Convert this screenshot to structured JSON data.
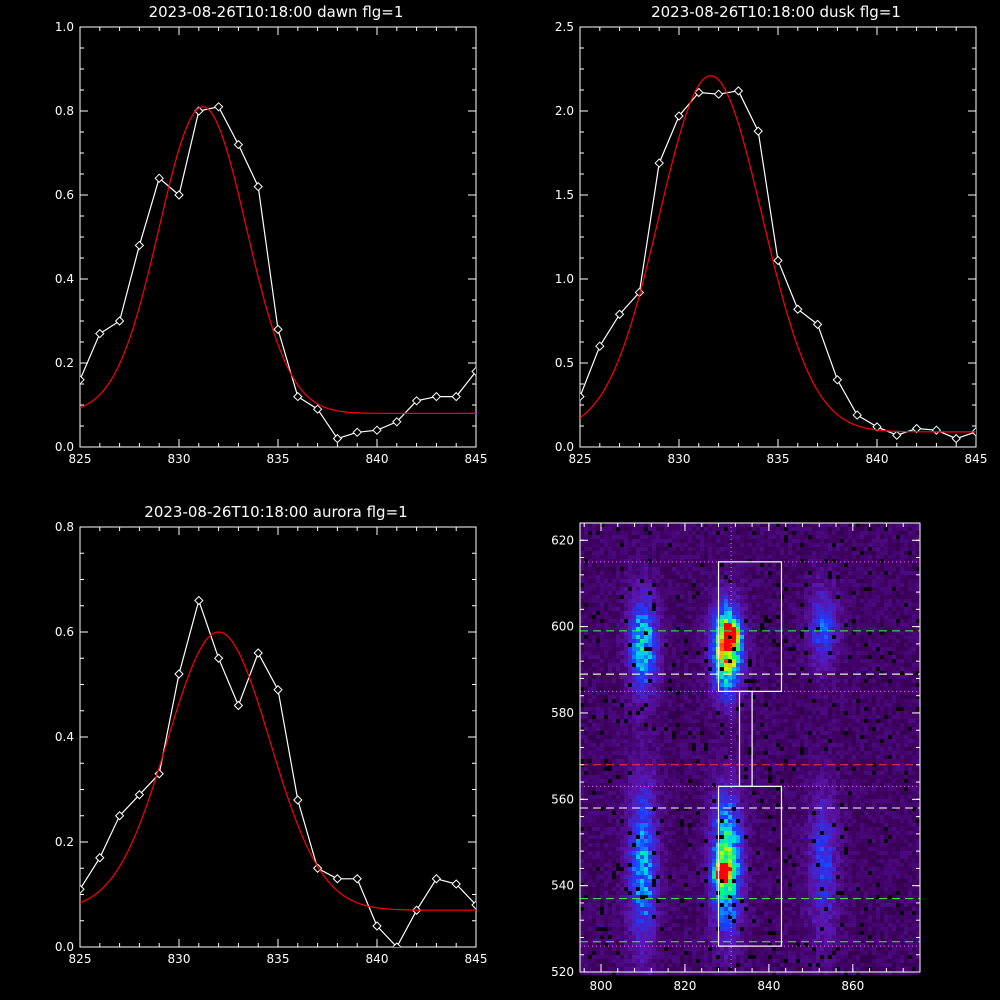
{
  "chart_data": [
    {
      "type": "line",
      "title": "2023-08-26T10:18:00 dawn flg=1",
      "xlim": [
        825,
        845
      ],
      "ylim": [
        0.0,
        1.0
      ],
      "xticks": [
        "825",
        "830",
        "835",
        "840",
        "845"
      ],
      "yticks": [
        "0.0",
        "0.2",
        "0.4",
        "0.6",
        "0.8",
        "1.0"
      ],
      "grid": false,
      "series": [
        {
          "color": "#ffffff",
          "marker": "diamond",
          "x": [
            825,
            826,
            827,
            828,
            829,
            830,
            831,
            832,
            833,
            834,
            835,
            836,
            837,
            838,
            839,
            840,
            841,
            842,
            843,
            844,
            845
          ],
          "y": [
            0.16,
            0.27,
            0.3,
            0.48,
            0.64,
            0.6,
            0.8,
            0.81,
            0.72,
            0.62,
            0.28,
            0.12,
            0.09,
            0.02,
            0.035,
            0.04,
            0.06,
            0.11,
            0.12,
            0.12,
            0.18
          ]
        },
        {
          "color": "#ff0000",
          "fit": "gaussian",
          "amplitude": 0.73,
          "center": 831.2,
          "sigma": 2.2,
          "baseline": 0.08
        }
      ]
    },
    {
      "type": "line",
      "title": "2023-08-26T10:18:00 dusk flg=1",
      "xlim": [
        825,
        845
      ],
      "ylim": [
        0.0,
        2.5
      ],
      "xticks": [
        "825",
        "830",
        "835",
        "840",
        "845"
      ],
      "yticks": [
        "0.0",
        "0.5",
        "1.0",
        "1.5",
        "2.0",
        "2.5"
      ],
      "grid": false,
      "series": [
        {
          "color": "#ffffff",
          "marker": "diamond",
          "x": [
            825,
            826,
            827,
            828,
            829,
            830,
            831,
            832,
            833,
            834,
            835,
            836,
            837,
            838,
            839,
            840,
            841,
            842,
            843,
            844,
            845
          ],
          "y": [
            0.3,
            0.6,
            0.79,
            0.92,
            1.69,
            1.97,
            2.11,
            2.1,
            2.12,
            1.88,
            1.11,
            0.82,
            0.73,
            0.4,
            0.19,
            0.12,
            0.07,
            0.11,
            0.1,
            0.05,
            0.09
          ]
        },
        {
          "color": "#ff0000",
          "fit": "gaussian",
          "amplitude": 2.12,
          "center": 831.6,
          "sigma": 2.6,
          "baseline": 0.09
        }
      ]
    },
    {
      "type": "line",
      "title": "2023-08-26T10:18:00 aurora flg=1",
      "xlim": [
        825,
        845
      ],
      "ylim": [
        0.0,
        0.8
      ],
      "xticks": [
        "825",
        "830",
        "835",
        "840",
        "845"
      ],
      "yticks": [
        "0.0",
        "0.2",
        "0.4",
        "0.6",
        "0.8"
      ],
      "grid": false,
      "series": [
        {
          "color": "#ffffff",
          "marker": "diamond",
          "x": [
            825,
            826,
            827,
            828,
            829,
            830,
            831,
            832,
            833,
            834,
            835,
            836,
            837,
            838,
            839,
            840,
            841,
            842,
            843,
            844,
            845
          ],
          "y": [
            0.11,
            0.17,
            0.25,
            0.29,
            0.33,
            0.52,
            0.66,
            0.55,
            0.46,
            0.56,
            0.49,
            0.28,
            0.15,
            0.13,
            0.13,
            0.04,
            0.0,
            0.07,
            0.13,
            0.12,
            0.08
          ]
        },
        {
          "color": "#ff0000",
          "fit": "gaussian",
          "amplitude": 0.53,
          "center": 832.0,
          "sigma": 2.6,
          "baseline": 0.07
        }
      ]
    },
    {
      "type": "heatmap",
      "title": "",
      "xlim": [
        795,
        876
      ],
      "ylim": [
        520,
        624
      ],
      "xticks": [
        "800",
        "820",
        "840",
        "860"
      ],
      "yticks": [
        "520",
        "540",
        "560",
        "580",
        "600",
        "620"
      ],
      "colormap": "rainbow",
      "blobs": [
        {
          "x": 830,
          "y": 595,
          "sx": 2.5,
          "sy": 7,
          "peak": 0.85
        },
        {
          "x": 831,
          "y": 598,
          "sx": 1.2,
          "sy": 1.5,
          "peak": 1.0
        },
        {
          "x": 830,
          "y": 545,
          "sx": 2.5,
          "sy": 11,
          "peak": 0.65
        },
        {
          "x": 829,
          "y": 543,
          "sx": 1.2,
          "sy": 1.5,
          "peak": 0.8
        },
        {
          "x": 810,
          "y": 596,
          "sx": 2.5,
          "sy": 8,
          "peak": 0.5
        },
        {
          "x": 810,
          "y": 545,
          "sx": 2.5,
          "sy": 14,
          "peak": 0.42
        },
        {
          "x": 853,
          "y": 600,
          "sx": 2.5,
          "sy": 7,
          "peak": 0.3
        },
        {
          "x": 853,
          "y": 545,
          "sx": 2.5,
          "sy": 12,
          "peak": 0.28
        }
      ],
      "boxes": [
        {
          "x0": 828,
          "x1": 843,
          "y0": 585,
          "y1": 615
        },
        {
          "x0": 828,
          "x1": 843,
          "y0": 526,
          "y1": 563
        },
        {
          "x0": 833,
          "x1": 836,
          "y0": 563,
          "y1": 585
        }
      ],
      "vlines": [
        {
          "x": 831,
          "color": "#ff66ff",
          "style": "dotted"
        }
      ],
      "hlines": [
        {
          "y": 615,
          "color": "#ff66ff",
          "style": "dotted"
        },
        {
          "y": 585,
          "color": "#ff66ff",
          "style": "dotted"
        },
        {
          "y": 563,
          "color": "#ff66ff",
          "style": "dotted"
        },
        {
          "y": 526,
          "color": "#ff66ff",
          "style": "dotted"
        },
        {
          "y": 599,
          "color": "#33ff33",
          "style": "dashed"
        },
        {
          "y": 589,
          "color": "#33ff33",
          "style": "dashed"
        },
        {
          "y": 537,
          "color": "#33ff33",
          "style": "dashed"
        },
        {
          "y": 527,
          "color": "#33ff33",
          "style": "dashed"
        },
        {
          "y": 589,
          "color": "#ffffff",
          "style": "dashed"
        },
        {
          "y": 558,
          "color": "#ffffff",
          "style": "dashed"
        },
        {
          "y": 568,
          "color": "#ff3333",
          "style": "dashed"
        }
      ]
    }
  ]
}
